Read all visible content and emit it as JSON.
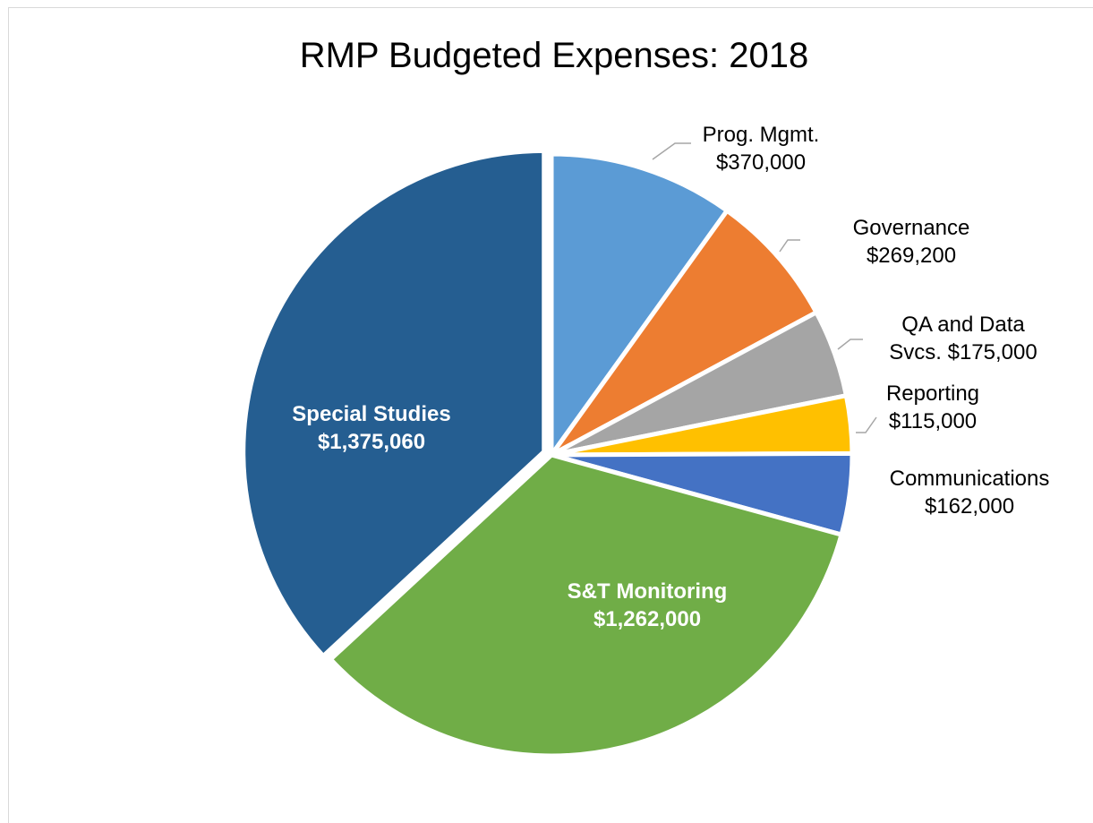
{
  "chart_data": {
    "type": "pie",
    "title": "RMP Budgeted Expenses: 2018",
    "start_angle_deg": 0,
    "direction": "clockwise",
    "slices": [
      {
        "name": "Prog. Mgmt.",
        "value_label": "$370,000",
        "value": 370000,
        "color": "#5b9bd5",
        "label_position": "outside"
      },
      {
        "name": "Governance",
        "value_label": "$269,200",
        "value": 269200,
        "color": "#ed7d31",
        "label_position": "outside"
      },
      {
        "name": "QA and Data Svcs.",
        "value_label": "$175,000",
        "value": 175000,
        "color": "#a5a5a5",
        "label_position": "outside"
      },
      {
        "name": "Reporting",
        "value_label": "$115,000",
        "value": 115000,
        "color": "#ffc000",
        "label_position": "outside"
      },
      {
        "name": "Communications",
        "value_label": "$162,000",
        "value": 162000,
        "color": "#4472c4",
        "label_position": "outside"
      },
      {
        "name": "S&T Monitoring",
        "value_label": "$1,262,000",
        "value": 1262000,
        "color": "#70ad47",
        "label_position": "inside"
      },
      {
        "name": "Special Studies",
        "value_label": "$1,375,060",
        "value": 1375060,
        "color": "#255e91",
        "label_position": "inside"
      }
    ],
    "label_lines": [
      [
        "Prog. Mgmt.",
        "$370,000"
      ],
      [
        "Governance",
        "$269,200"
      ],
      [
        "QA and Data",
        "Svcs. $175,000"
      ],
      [
        "Reporting",
        "$115,000"
      ],
      [
        "Communications",
        "$162,000"
      ],
      [
        "S&T Monitoring",
        "$1,262,000"
      ],
      [
        "Special Studies",
        "$1,375,060"
      ]
    ],
    "legend": "none"
  }
}
